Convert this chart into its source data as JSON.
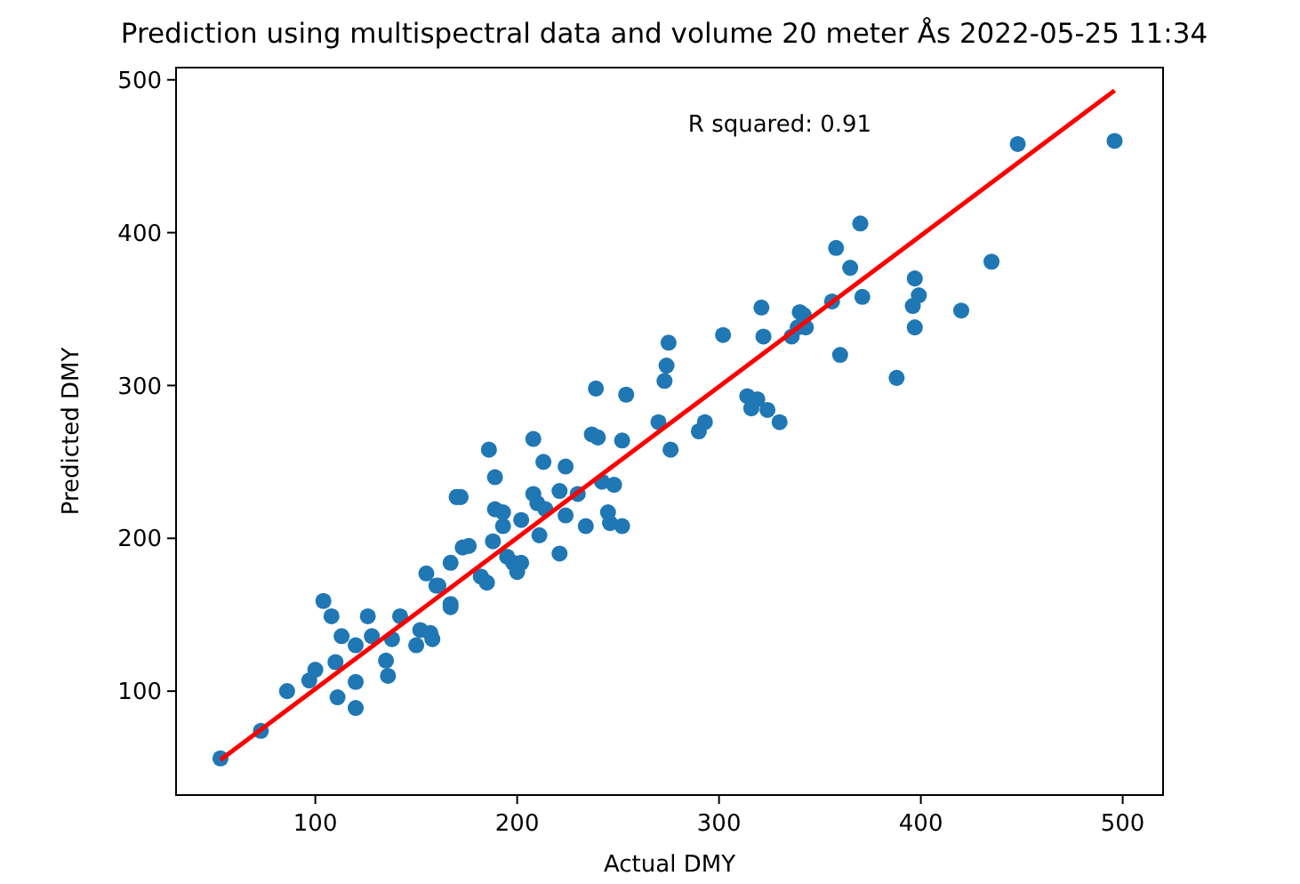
{
  "chart_data": {
    "type": "scatter",
    "title": "Prediction using multispectral data and volume 20 meter Ås 2022-05-25 11:34",
    "xlabel": "Actual DMY",
    "ylabel": "Predicted DMY",
    "xlim": [
      31,
      520
    ],
    "ylim": [
      32,
      508
    ],
    "xticks": [
      100,
      200,
      300,
      400,
      500
    ],
    "yticks": [
      100,
      200,
      300,
      400,
      500
    ],
    "grid": false,
    "annotations": [
      "R squared: 0.91"
    ],
    "series": [
      {
        "marker": "circle",
        "color": "#1f77b4",
        "x": [
          53,
          73,
          86,
          97,
          100,
          104,
          108,
          111,
          113,
          110,
          120,
          120,
          120,
          126,
          128,
          135,
          136,
          138,
          142,
          150,
          152,
          155,
          157,
          158,
          160,
          167,
          167,
          170,
          173,
          161,
          167,
          172,
          176,
          182,
          185,
          186,
          189,
          188,
          189,
          193,
          193,
          195,
          198,
          200,
          202,
          202,
          208,
          208,
          210,
          211,
          213,
          214,
          221,
          221,
          224,
          224,
          230,
          234,
          237,
          239,
          240,
          242,
          245,
          246,
          248,
          252,
          252,
          254,
          270,
          273,
          274,
          275,
          276,
          290,
          293,
          302,
          321,
          322,
          314,
          316,
          319,
          324,
          330,
          339,
          342,
          448,
          496,
          370,
          358,
          365,
          435,
          397,
          399,
          396,
          356,
          371,
          340,
          420,
          397,
          360,
          388,
          336,
          343
        ],
        "values": [
          56,
          74,
          100,
          107,
          114,
          159,
          149,
          96,
          136,
          119,
          89,
          106,
          130,
          149,
          136,
          120,
          110,
          134,
          149,
          130,
          140,
          177,
          138,
          134,
          169,
          157,
          184,
          227,
          194,
          169,
          155,
          227,
          195,
          175,
          171,
          258,
          240,
          198,
          219,
          217,
          208,
          188,
          184,
          178,
          184,
          212,
          265,
          229,
          223,
          202,
          250,
          219,
          231,
          190,
          247,
          215,
          229,
          208,
          268,
          298,
          266,
          237,
          217,
          210,
          235,
          208,
          264,
          294,
          276,
          303,
          313,
          328,
          258,
          270,
          276,
          333,
          351,
          332,
          293,
          285,
          291,
          284,
          276,
          338,
          346,
          458,
          460,
          406,
          390,
          377,
          381,
          370,
          359,
          352,
          355,
          358,
          348,
          349,
          338,
          320,
          305,
          332,
          338
        ]
      },
      {
        "type": "line",
        "color": "#ff0000",
        "x": [
          53,
          496
        ],
        "values": [
          55,
          493
        ]
      }
    ]
  }
}
